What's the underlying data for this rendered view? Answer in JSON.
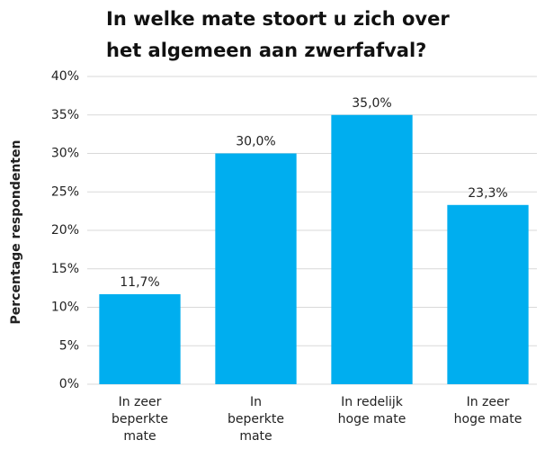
{
  "chart_data": {
    "type": "bar",
    "title": [
      "In welke mate stoort u zich over",
      "het algemeen aan zwerfafval?"
    ],
    "y_label": "Percentage respondenten",
    "categories": [
      [
        "In zeer",
        "beperkte",
        "mate"
      ],
      [
        "In",
        "beperkte",
        "mate"
      ],
      [
        "In redelijk",
        "hoge mate"
      ],
      [
        "In zeer",
        "hoge mate"
      ]
    ],
    "values": [
      11.7,
      30.0,
      35.0,
      23.3
    ],
    "value_labels": [
      "11,7%",
      "30,0%",
      "35,0%",
      "23,3%"
    ],
    "color": "#00aeef",
    "ylim": [
      0,
      40
    ],
    "yticks": [
      {
        "value": 0,
        "label": "0%"
      },
      {
        "value": 5,
        "label": "5%"
      },
      {
        "value": 10,
        "label": "10%"
      },
      {
        "value": 15,
        "label": "15%"
      },
      {
        "value": 20,
        "label": "20%"
      },
      {
        "value": 25,
        "label": "25%"
      },
      {
        "value": 30,
        "label": "30%"
      },
      {
        "value": 35,
        "label": "35%"
      },
      {
        "value": 40,
        "label": "40%"
      }
    ],
    "grid": true
  }
}
